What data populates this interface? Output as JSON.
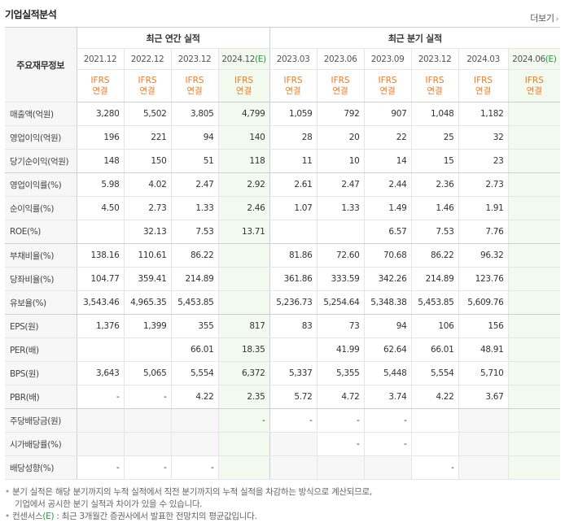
{
  "title": "기업실적분석",
  "more_label": "더보기",
  "row_header_label": "주요재무정보",
  "groups": {
    "annual": "최근 연간 실적",
    "quarterly": "최근 분기 실적"
  },
  "periods": [
    {
      "label": "2021.12",
      "est": false
    },
    {
      "label": "2022.12",
      "est": false
    },
    {
      "label": "2023.12",
      "est": false
    },
    {
      "label": "2024.12",
      "est": true
    },
    {
      "label": "2023.03",
      "est": false
    },
    {
      "label": "2023.06",
      "est": false
    },
    {
      "label": "2023.09",
      "est": false
    },
    {
      "label": "2023.12",
      "est": false
    },
    {
      "label": "2024.03",
      "est": false
    },
    {
      "label": "2024.06",
      "est": true
    }
  ],
  "est_mark": "(E)",
  "ifrs_top": "IFRS",
  "ifrs_bottom": "연결",
  "rows": [
    {
      "label": "매출액(억원)",
      "values": [
        "3,280",
        "5,502",
        "3,805",
        "4,799",
        "1,059",
        "792",
        "907",
        "1,048",
        "1,182",
        ""
      ]
    },
    {
      "label": "영업이익(억원)",
      "values": [
        "196",
        "221",
        "94",
        "140",
        "28",
        "20",
        "22",
        "25",
        "32",
        ""
      ]
    },
    {
      "label": "당기순이익(억원)",
      "values": [
        "148",
        "150",
        "51",
        "118",
        "11",
        "10",
        "14",
        "15",
        "23",
        ""
      ]
    },
    {
      "label": "영업이익률(%)",
      "values": [
        "5.98",
        "4.02",
        "2.47",
        "2.92",
        "2.61",
        "2.47",
        "2.44",
        "2.36",
        "2.73",
        ""
      ]
    },
    {
      "label": "순이익률(%)",
      "values": [
        "4.50",
        "2.73",
        "1.33",
        "2.46",
        "1.07",
        "1.33",
        "1.49",
        "1.46",
        "1.91",
        ""
      ]
    },
    {
      "label": "ROE(%)",
      "values": [
        "",
        "32.13",
        "7.53",
        "13.71",
        "",
        "",
        "6.57",
        "7.53",
        "7.76",
        ""
      ]
    },
    {
      "label": "부채비율(%)",
      "values": [
        "138.16",
        "110.61",
        "86.22",
        "",
        "81.86",
        "72.60",
        "70.68",
        "86.22",
        "96.32",
        ""
      ]
    },
    {
      "label": "당좌비율(%)",
      "values": [
        "104.77",
        "359.41",
        "214.89",
        "",
        "361.86",
        "333.59",
        "342.26",
        "214.89",
        "123.76",
        ""
      ]
    },
    {
      "label": "유보율(%)",
      "values": [
        "3,543.46",
        "4,965.35",
        "5,453.85",
        "",
        "5,236.73",
        "5,254.64",
        "5,348.38",
        "5,453.85",
        "5,609.76",
        ""
      ]
    },
    {
      "label": "EPS(원)",
      "values": [
        "1,376",
        "1,399",
        "355",
        "817",
        "83",
        "73",
        "94",
        "106",
        "156",
        ""
      ]
    },
    {
      "label": "PER(배)",
      "values": [
        "",
        "",
        "66.01",
        "18.35",
        "",
        "41.99",
        "62.64",
        "66.01",
        "48.91",
        ""
      ]
    },
    {
      "label": "BPS(원)",
      "values": [
        "3,643",
        "5,065",
        "5,554",
        "6,372",
        "5,337",
        "5,355",
        "5,448",
        "5,554",
        "5,710",
        ""
      ]
    },
    {
      "label": "PBR(배)",
      "values": [
        "-",
        "-",
        "4.22",
        "2.35",
        "5.72",
        "4.72",
        "3.74",
        "4.22",
        "3.67",
        ""
      ]
    },
    {
      "label": "주당배당금(원)",
      "values": [
        "",
        "",
        "",
        "-",
        "-",
        "-",
        "-",
        "",
        "",
        " "
      ],
      "gray": [
        true,
        true,
        true,
        false,
        false,
        false,
        false,
        false,
        true,
        false
      ]
    },
    {
      "label": "시가배당률(%)",
      "values": [
        "",
        "",
        "",
        "",
        "",
        "-",
        "-",
        "",
        "",
        ""
      ],
      "gray": [
        true,
        true,
        true,
        false,
        true,
        false,
        false,
        false,
        true,
        false
      ]
    },
    {
      "label": "배당성향(%)",
      "values": [
        "-",
        "-",
        "-",
        "",
        "",
        "",
        "",
        "-",
        "",
        ""
      ],
      "gray": [
        false,
        false,
        false,
        false,
        true,
        true,
        true,
        false,
        true,
        false
      ]
    }
  ],
  "notes": [
    "분기 실적은 해당 분기까지의 누적 실적에서 직전 분기까지의 누적 실적을 차감하는 방식으로 계산되므로,",
    "기업에서 공시한 분기 실적과 차이가 있을 수 있습니다.",
    "컨센서스(E) : 최근 3개월간 증권사에서 발표한 전망치의 평균값입니다."
  ]
}
